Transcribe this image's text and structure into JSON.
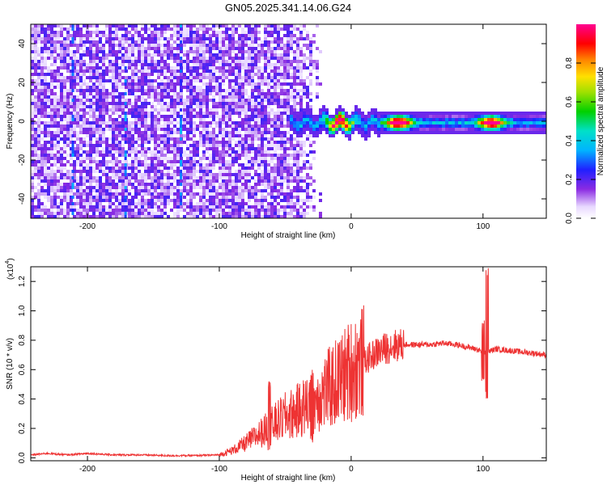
{
  "chart_data": [
    {
      "type": "heatmap",
      "title": "GN05.2025.341.14.06.G24",
      "xlabel": "Height of straight line (km)",
      "ylabel": "Frequency (Hz)",
      "xlim": [
        -243,
        148
      ],
      "ylim": [
        -50,
        50
      ],
      "x_ticks": [
        -200,
        -100,
        0,
        100
      ],
      "x_tick_labels": [
        "-200",
        "-100",
        "0",
        "100"
      ],
      "y_ticks": [
        -40,
        -20,
        0,
        20,
        40
      ],
      "y_tick_labels": [
        "-40",
        "-20",
        "0",
        "20",
        "40"
      ],
      "colorbar": {
        "label": "Normalized spectral amplitude",
        "range": [
          0,
          1
        ],
        "ticks": [
          0.0,
          0.2,
          0.4,
          0.6,
          0.8
        ],
        "tick_labels": [
          "0.0",
          "0.2",
          "0.4",
          "0.6",
          "0.8"
        ],
        "colormap": "rainbow (white-violet-blue-cyan-green-yellow-orange-red-magenta)"
      },
      "noise_region_x": [
        -243,
        -30
      ],
      "signal_band": {
        "x_start": -48,
        "x_end": 148,
        "center_frequency": 0,
        "peaks": [
          {
            "x": 35,
            "amplitude": 0.95
          },
          {
            "x": 105,
            "amplitude": 0.9
          },
          {
            "x": -10,
            "amplitude": 0.75
          }
        ]
      },
      "grid": false
    },
    {
      "type": "line",
      "xlabel": "Height of straight line (km)",
      "ylabel": "SNR (10 * v/v)",
      "y_multiplier_label": "(x10",
      "y_multiplier_exp": "4",
      "y_multiplier_close": ")",
      "xlim": [
        -243,
        148
      ],
      "ylim": [
        -0.02,
        1.3
      ],
      "x_ticks": [
        -200,
        -100,
        0,
        100
      ],
      "x_tick_labels": [
        "-200",
        "-100",
        "0",
        "100"
      ],
      "y_ticks": [
        0.0,
        0.2,
        0.4,
        0.6,
        0.8,
        1.0,
        1.2
      ],
      "y_tick_labels": [
        "0.0",
        "0.2",
        "0.4",
        "0.6",
        "0.8",
        "1.0",
        "1.2"
      ],
      "series": [
        {
          "color": "#ee3333",
          "x": [
            -243,
            -230,
            -215,
            -200,
            -180,
            -160,
            -140,
            -120,
            -100,
            -90,
            -80,
            -70,
            -60,
            -50,
            -40,
            -30,
            -20,
            -10,
            0,
            10,
            20,
            30,
            40,
            50,
            60,
            70,
            80,
            90,
            95,
            100,
            103,
            110,
            120,
            130,
            140,
            148
          ],
          "values": [
            0.02,
            0.03,
            0.02,
            0.03,
            0.02,
            0.02,
            0.015,
            0.015,
            0.02,
            0.05,
            0.1,
            0.16,
            0.22,
            0.28,
            0.32,
            0.38,
            0.45,
            0.52,
            0.6,
            0.66,
            0.72,
            0.76,
            0.77,
            0.77,
            0.77,
            0.78,
            0.77,
            0.75,
            0.74,
            0.72,
            0.72,
            0.74,
            0.73,
            0.72,
            0.71,
            0.7
          ]
        }
      ],
      "spikes": [
        {
          "x": 103,
          "max": 1.3,
          "min": 0.4
        },
        {
          "x": 100,
          "max": 0.95,
          "min": 0.5
        },
        {
          "x": -30,
          "max": 0.62,
          "min": 0.1
        },
        {
          "x": -62,
          "max": 0.52,
          "min": 0.05
        }
      ],
      "grid": false
    }
  ]
}
